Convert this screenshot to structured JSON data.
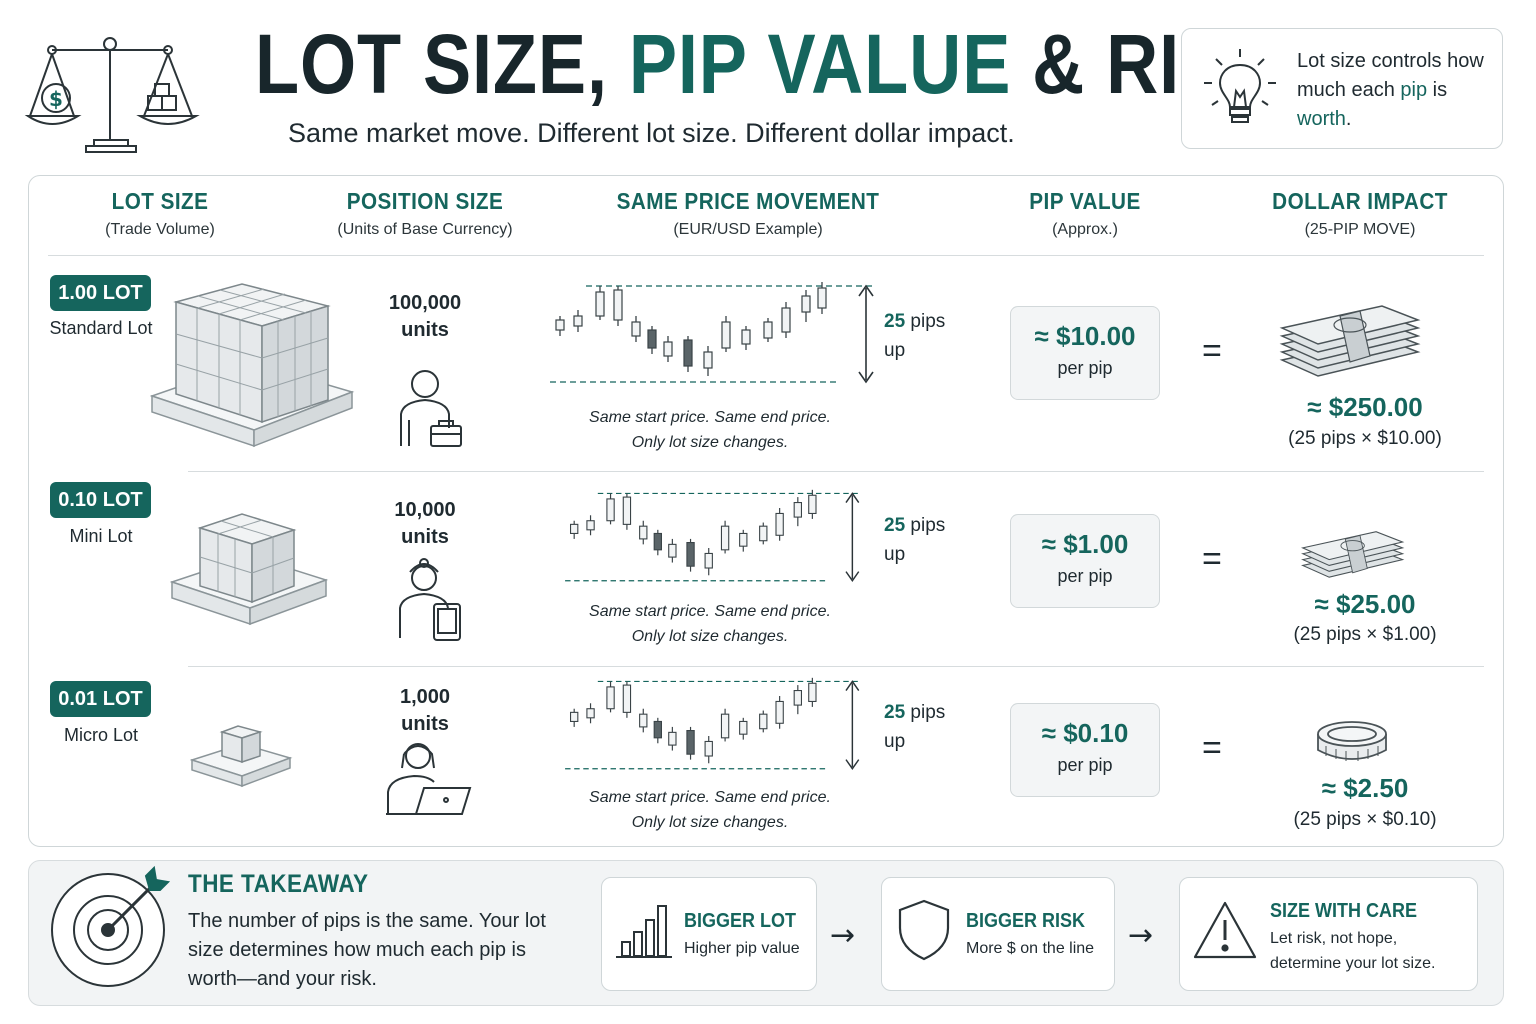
{
  "header": {
    "title_part1": "LOT SIZE, ",
    "title_accent": "PIP VALUE",
    "title_part2": " & RISK",
    "subtitle": "Same market move. Different lot size. Different dollar impact.",
    "tip_part1": "Lot size controls how much each ",
    "tip_accent1": "pip",
    "tip_part2": " is ",
    "tip_accent2": "worth",
    "tip_end": "."
  },
  "columns": [
    {
      "title": "LOT SIZE",
      "sub": "(Trade Volume)"
    },
    {
      "title": "POSITION SIZE",
      "sub": "(Units of Base Currency)"
    },
    {
      "title": "SAME PRICE MOVEMENT",
      "sub": "(EUR/USD Example)"
    },
    {
      "title": "PIP VALUE",
      "sub": "(Approx.)"
    },
    {
      "title": "DOLLAR IMPACT",
      "sub": "(25-PIP MOVE)"
    }
  ],
  "rows": [
    {
      "lot": "1.00 LOT",
      "name": "Standard Lot",
      "units_value": "100,000",
      "units_label": "units",
      "note1": "Same start price. Same end price.",
      "note2": "Only lot size changes.",
      "pips_num": "25",
      "pips_word": "pips",
      "pips_dir": "up",
      "pip_value": "≈ $10.00",
      "per_pip": "per pip",
      "equals": "=",
      "dollar": "≈ $250.00",
      "calc": "(25 pips × $10.00)"
    },
    {
      "lot": "0.10 LOT",
      "name": "Mini Lot",
      "units_value": "10,000",
      "units_label": "units",
      "note1": "Same start price. Same end price.",
      "note2": "Only lot size changes.",
      "pips_num": "25",
      "pips_word": "pips",
      "pips_dir": "up",
      "pip_value": "≈ $1.00",
      "per_pip": "per pip",
      "equals": "=",
      "dollar": "≈ $25.00",
      "calc": "(25 pips × $1.00)"
    },
    {
      "lot": "0.01 LOT",
      "name": "Micro Lot",
      "units_value": "1,000",
      "units_label": "units",
      "note1": "Same start price. Same end price.",
      "note2": "Only lot size changes.",
      "pips_num": "25",
      "pips_word": "pips",
      "pips_dir": "up",
      "pip_value": "≈ $0.10",
      "per_pip": "per pip",
      "equals": "=",
      "dollar": "≈ $2.50",
      "calc": "(25 pips × $0.10)"
    }
  ],
  "takeaway": {
    "title": "THE TAKEAWAY",
    "text": "The number of pips is the same. Your lot size determines how much each pip is worth—and your risk.",
    "steps": [
      {
        "title": "BIGGER LOT",
        "desc": "Higher pip value",
        "icon": "bar-chart-icon"
      },
      {
        "title": "BIGGER RISK",
        "desc": "More $ on the line",
        "icon": "shield-icon"
      },
      {
        "title": "SIZE WITH CARE",
        "desc": "Let risk, not hope, determine your lot size.",
        "icon": "warning-icon"
      }
    ],
    "arrow": "→"
  },
  "colors": {
    "accent": "#15655d",
    "text": "#1f2a30",
    "border": "#cfd6d8",
    "panel": "#f2f4f5"
  }
}
